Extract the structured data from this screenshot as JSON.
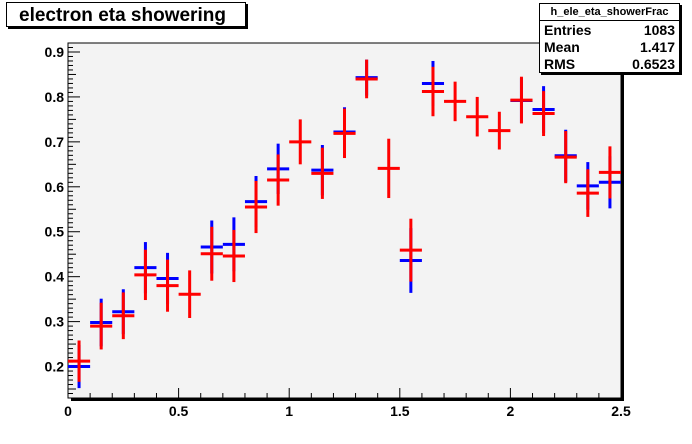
{
  "chart_data": {
    "type": "scatter",
    "title": "electron eta showering",
    "xlim": [
      0,
      2.5
    ],
    "ylim": [
      0.13,
      0.92
    ],
    "x_ticks": [
      0,
      0.5,
      1,
      1.5,
      2,
      2.5
    ],
    "x_tick_labels": [
      "0",
      "0.5",
      "1",
      "1.5",
      "2",
      "2.5"
    ],
    "y_ticks": [
      0.2,
      0.3,
      0.4,
      0.5,
      0.6,
      0.7,
      0.8,
      0.9
    ],
    "y_tick_labels": [
      "0.2",
      "0.3",
      "0.4",
      "0.5",
      "0.6",
      "0.7",
      "0.8",
      "0.9"
    ],
    "bin_half_width": 0.05,
    "series": [
      {
        "color": "#0000ff",
        "points": [
          {
            "x": 0.05,
            "y": 0.2,
            "err": 0.048
          },
          {
            "x": 0.15,
            "y": 0.298,
            "err": 0.053
          },
          {
            "x": 0.25,
            "y": 0.322,
            "err": 0.05
          },
          {
            "x": 0.35,
            "y": 0.42,
            "err": 0.057
          },
          {
            "x": 0.45,
            "y": 0.396,
            "err": 0.057
          },
          {
            "x": 0.65,
            "y": 0.466,
            "err": 0.059
          },
          {
            "x": 0.75,
            "y": 0.472,
            "err": 0.06
          },
          {
            "x": 0.85,
            "y": 0.567,
            "err": 0.057
          },
          {
            "x": 0.95,
            "y": 0.64,
            "err": 0.056
          },
          {
            "x": 1.15,
            "y": 0.637,
            "err": 0.056
          },
          {
            "x": 1.25,
            "y": 0.722,
            "err": 0.055
          },
          {
            "x": 1.35,
            "y": 0.843,
            "err": 0.04
          },
          {
            "x": 1.55,
            "y": 0.436,
            "err": 0.072
          },
          {
            "x": 1.65,
            "y": 0.83,
            "err": 0.05
          },
          {
            "x": 2.05,
            "y": 0.792,
            "err": 0.05
          },
          {
            "x": 2.15,
            "y": 0.772,
            "err": 0.052
          },
          {
            "x": 2.25,
            "y": 0.669,
            "err": 0.058
          },
          {
            "x": 2.35,
            "y": 0.602,
            "err": 0.053
          },
          {
            "x": 2.45,
            "y": 0.61,
            "err": 0.058
          }
        ]
      },
      {
        "color": "#ff0000",
        "points": [
          {
            "x": 0.05,
            "y": 0.212,
            "err": 0.046
          },
          {
            "x": 0.15,
            "y": 0.29,
            "err": 0.052
          },
          {
            "x": 0.25,
            "y": 0.313,
            "err": 0.052
          },
          {
            "x": 0.35,
            "y": 0.404,
            "err": 0.056
          },
          {
            "x": 0.45,
            "y": 0.38,
            "err": 0.058
          },
          {
            "x": 0.55,
            "y": 0.361,
            "err": 0.053
          },
          {
            "x": 0.65,
            "y": 0.451,
            "err": 0.06
          },
          {
            "x": 0.75,
            "y": 0.446,
            "err": 0.058
          },
          {
            "x": 0.85,
            "y": 0.555,
            "err": 0.058
          },
          {
            "x": 0.95,
            "y": 0.615,
            "err": 0.057
          },
          {
            "x": 1.05,
            "y": 0.7,
            "err": 0.05
          },
          {
            "x": 1.15,
            "y": 0.63,
            "err": 0.057
          },
          {
            "x": 1.25,
            "y": 0.719,
            "err": 0.055
          },
          {
            "x": 1.35,
            "y": 0.84,
            "err": 0.043
          },
          {
            "x": 1.45,
            "y": 0.641,
            "err": 0.066
          },
          {
            "x": 1.55,
            "y": 0.459,
            "err": 0.07
          },
          {
            "x": 1.65,
            "y": 0.812,
            "err": 0.055
          },
          {
            "x": 1.75,
            "y": 0.79,
            "err": 0.044
          },
          {
            "x": 1.85,
            "y": 0.756,
            "err": 0.044
          },
          {
            "x": 1.95,
            "y": 0.725,
            "err": 0.042
          },
          {
            "x": 2.05,
            "y": 0.793,
            "err": 0.052
          },
          {
            "x": 2.15,
            "y": 0.763,
            "err": 0.05
          },
          {
            "x": 2.25,
            "y": 0.666,
            "err": 0.058
          },
          {
            "x": 2.35,
            "y": 0.586,
            "err": 0.053
          },
          {
            "x": 2.45,
            "y": 0.632,
            "err": 0.058
          }
        ]
      }
    ]
  },
  "stats": {
    "title": "h_ele_eta_showerFrac",
    "entries_label": "Entries",
    "entries_value": "1083",
    "mean_label": "Mean",
    "mean_value": "1.417",
    "rms_label": "RMS",
    "rms_value": "0.6523"
  }
}
